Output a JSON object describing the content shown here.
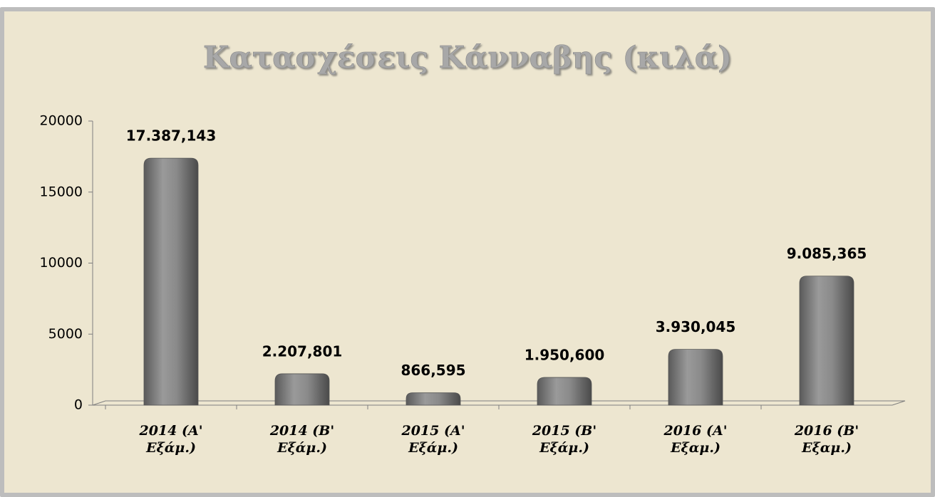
{
  "chart_data": {
    "type": "bar",
    "title": "Κατασχέσεις Κάνναβης (κιλά)",
    "categories": [
      "2014 (Α' Εξάμ.)",
      "2014 (Β' Εξάμ.)",
      "2015 (Α' Εξάμ.)",
      "2015 (Β' Εξάμ.)",
      "2016 (Α' Εξαμ.)",
      "2016 (Β' Εξαμ.)"
    ],
    "values": [
      17387.143,
      2207.801,
      866.595,
      1950.6,
      3930.045,
      9085.365
    ],
    "value_labels": [
      "17.387,143",
      "2.207,801",
      "866,595",
      "1.950,600",
      "3.930,045",
      "9.085,365"
    ],
    "color": "#8a8a8a",
    "ylim": [
      0,
      20000
    ],
    "yticks": [
      0,
      5000,
      10000,
      15000,
      20000
    ],
    "grid": false
  }
}
